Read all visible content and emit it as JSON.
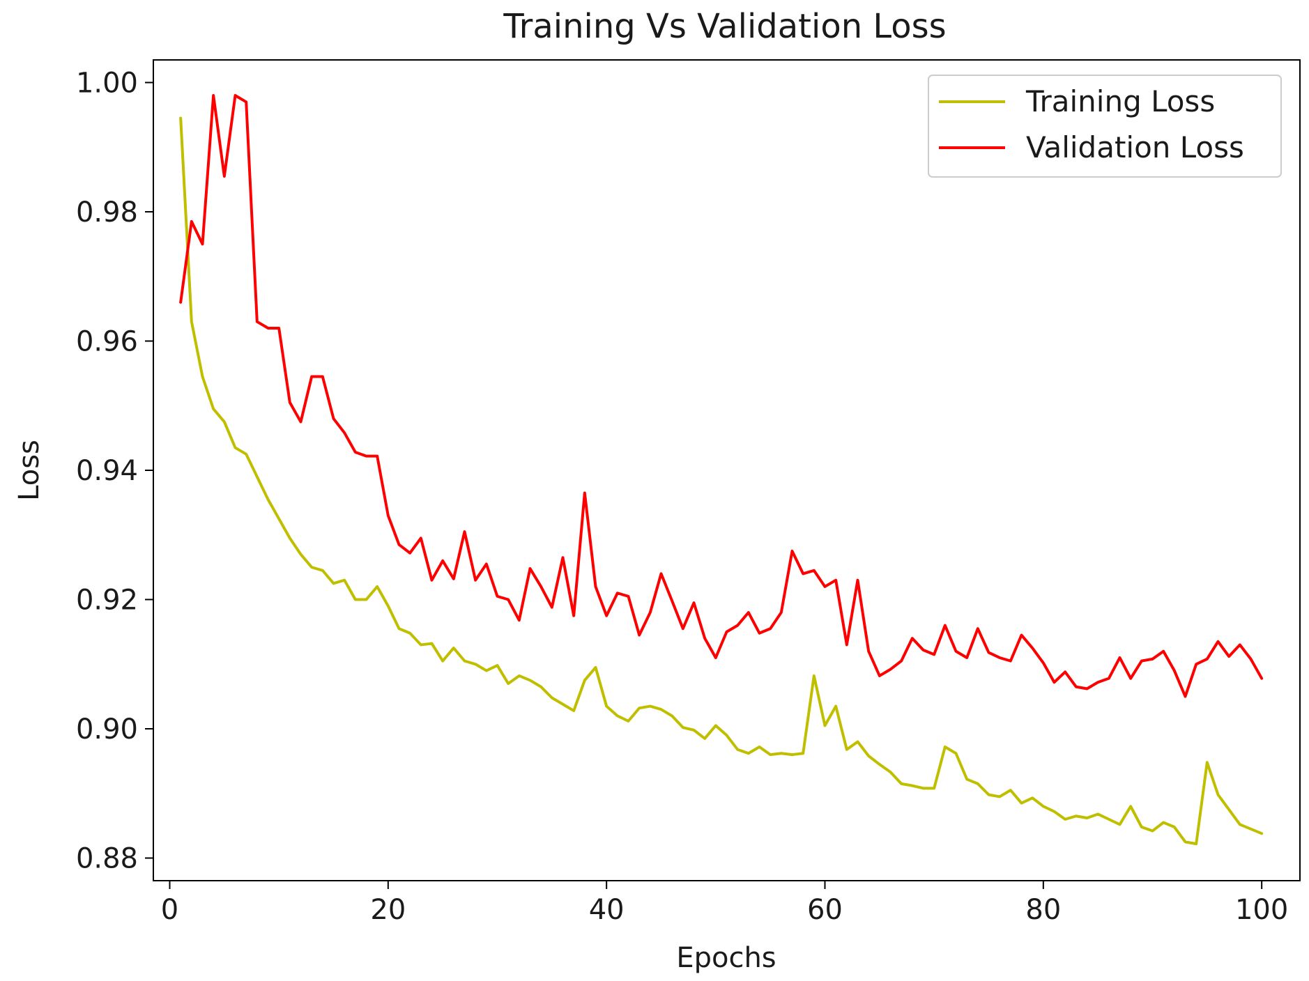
{
  "chart_data": {
    "type": "line",
    "title": "Training Vs Validation Loss",
    "xlabel": "Epochs",
    "ylabel": "Loss",
    "xlim": [
      -1.5,
      103.5
    ],
    "ylim": [
      0.8765,
      1.0035
    ],
    "xticks": [
      0,
      20,
      40,
      60,
      80,
      100
    ],
    "yticks": [
      0.88,
      0.9,
      0.92,
      0.94,
      0.96,
      0.98,
      1.0
    ],
    "xtick_labels": [
      "0",
      "20",
      "40",
      "60",
      "80",
      "100"
    ],
    "ytick_labels": [
      "0.88",
      "0.90",
      "0.92",
      "0.94",
      "0.96",
      "0.98",
      "1.00"
    ],
    "grid": false,
    "legend_position": "top-right",
    "x": [
      1,
      2,
      3,
      4,
      5,
      6,
      7,
      8,
      9,
      10,
      11,
      12,
      13,
      14,
      15,
      16,
      17,
      18,
      19,
      20,
      21,
      22,
      23,
      24,
      25,
      26,
      27,
      28,
      29,
      30,
      31,
      32,
      33,
      34,
      35,
      36,
      37,
      38,
      39,
      40,
      41,
      42,
      43,
      44,
      45,
      46,
      47,
      48,
      49,
      50,
      51,
      52,
      53,
      54,
      55,
      56,
      57,
      58,
      59,
      60,
      61,
      62,
      63,
      64,
      65,
      66,
      67,
      68,
      69,
      70,
      71,
      72,
      73,
      74,
      75,
      76,
      77,
      78,
      79,
      80,
      81,
      82,
      83,
      84,
      85,
      86,
      87,
      88,
      89,
      90,
      91,
      92,
      93,
      94,
      95,
      96,
      97,
      98,
      99,
      100
    ],
    "series": [
      {
        "name": "Training Loss",
        "color": "#bfbf00",
        "values": [
          0.9945,
          0.963,
          0.9545,
          0.9495,
          0.9475,
          0.9435,
          0.9425,
          0.939,
          0.9355,
          0.9325,
          0.9295,
          0.927,
          0.925,
          0.9245,
          0.9225,
          0.923,
          0.92,
          0.92,
          0.922,
          0.919,
          0.9155,
          0.9148,
          0.913,
          0.9132,
          0.9105,
          0.9125,
          0.9105,
          0.91,
          0.909,
          0.9098,
          0.907,
          0.9082,
          0.9075,
          0.9065,
          0.9048,
          0.9038,
          0.9028,
          0.9075,
          0.9095,
          0.9035,
          0.902,
          0.9012,
          0.9032,
          0.9035,
          0.903,
          0.902,
          0.9002,
          0.8998,
          0.8985,
          0.9005,
          0.899,
          0.8968,
          0.8962,
          0.8972,
          0.896,
          0.8962,
          0.896,
          0.8962,
          0.9082,
          0.9005,
          0.9035,
          0.8968,
          0.898,
          0.8958,
          0.8945,
          0.8933,
          0.8915,
          0.8912,
          0.8908,
          0.8908,
          0.8972,
          0.8962,
          0.8922,
          0.8915,
          0.8898,
          0.8895,
          0.8905,
          0.8885,
          0.8893,
          0.888,
          0.8872,
          0.886,
          0.8865,
          0.8862,
          0.8868,
          0.886,
          0.8852,
          0.888,
          0.8848,
          0.8842,
          0.8855,
          0.8848,
          0.8825,
          0.8822,
          0.8948,
          0.8898,
          0.8875,
          0.8852,
          0.8845,
          0.8838
        ]
      },
      {
        "name": "Validation Loss",
        "color": "#ff0000",
        "values": [
          0.966,
          0.9785,
          0.975,
          0.998,
          0.9855,
          0.998,
          0.997,
          0.963,
          0.962,
          0.962,
          0.9505,
          0.9475,
          0.9545,
          0.9545,
          0.948,
          0.9458,
          0.9428,
          0.9422,
          0.9422,
          0.933,
          0.9285,
          0.9272,
          0.9295,
          0.923,
          0.926,
          0.9232,
          0.9305,
          0.923,
          0.9255,
          0.9205,
          0.92,
          0.9168,
          0.9248,
          0.922,
          0.9188,
          0.9265,
          0.9175,
          0.9365,
          0.922,
          0.9175,
          0.921,
          0.9205,
          0.9145,
          0.918,
          0.924,
          0.9198,
          0.9155,
          0.9195,
          0.914,
          0.911,
          0.915,
          0.916,
          0.918,
          0.9148,
          0.9155,
          0.918,
          0.9275,
          0.924,
          0.9245,
          0.922,
          0.923,
          0.913,
          0.923,
          0.912,
          0.9082,
          0.9092,
          0.9105,
          0.914,
          0.9122,
          0.9115,
          0.916,
          0.912,
          0.911,
          0.9155,
          0.9118,
          0.911,
          0.9105,
          0.9145,
          0.9125,
          0.9102,
          0.9072,
          0.9088,
          0.9065,
          0.9062,
          0.9072,
          0.9078,
          0.911,
          0.9078,
          0.9105,
          0.9108,
          0.912,
          0.909,
          0.905,
          0.91,
          0.9108,
          0.9135,
          0.9112,
          0.913,
          0.9108,
          0.9078
        ]
      }
    ]
  }
}
